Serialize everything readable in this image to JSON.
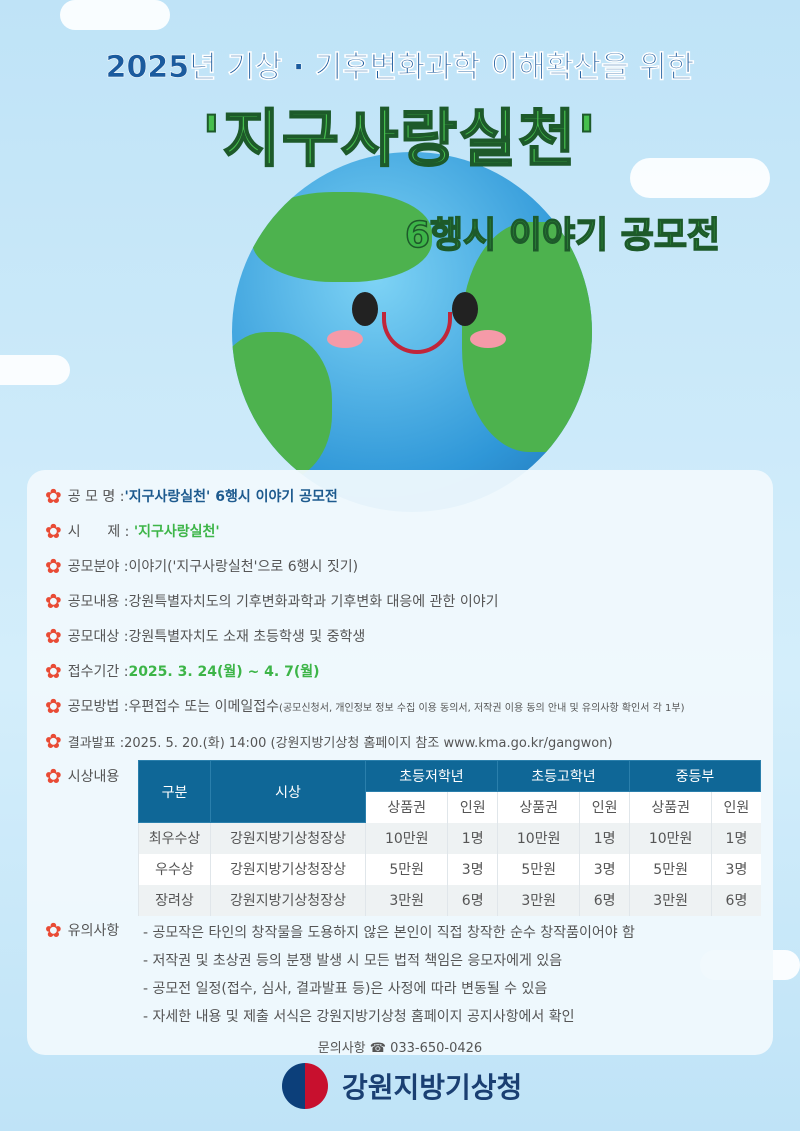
{
  "title": {
    "line1": "2025년 기상 · 기후변화과학 이해확산을 위한",
    "line2": "'지구사랑실천'",
    "line3": "6행시 이야기 공모전"
  },
  "items": [
    {
      "label": "공 모 명 : ",
      "value": "'지구사랑실천' 6행시 이야기 공모전"
    },
    {
      "label": "시      제 : ",
      "value": "'지구사랑실천'"
    },
    {
      "label": "공모분야 : ",
      "value": "이야기('지구사랑실천'으로 6행시 짓기)"
    },
    {
      "label": "공모내용 : ",
      "value": "강원특별자치도의 기후변화과학과 기후변화 대응에 관한 이야기"
    },
    {
      "label": "공모대상 : ",
      "value": "강원특별자치도 소재 초등학생 및 중학생"
    },
    {
      "label": "접수기간 : ",
      "value": "2025. 3. 24(월) ~ 4. 7(월)"
    },
    {
      "label": "공모방법 : ",
      "value": "우편접수 또는 이메일접수",
      "note": "(공모신청서, 개인정보 정보 수집 이용 동의서, 저작권 이용 동의 안내 및 유의사항 확인서 각 1부)"
    },
    {
      "label": "결과발표 : ",
      "value": "2025. 5. 20.(화) 14:00 (강원지방기상청 홈페이지 참조 www.kma.go.kr/gangwon)"
    },
    {
      "label": "시상내용",
      "value": ""
    }
  ],
  "table": {
    "h1": [
      "구분",
      "시상",
      "초등저학년",
      "초등고학년",
      "중등부"
    ],
    "h2": [
      "상품권",
      "인원",
      "상품권",
      "인원",
      "상품권",
      "인원"
    ],
    "rows": [
      [
        "최우수상",
        "강원지방기상청장상",
        "10만원",
        "1명",
        "10만원",
        "1명",
        "10만원",
        "1명"
      ],
      [
        "우수상",
        "강원지방기상청장상",
        "5만원",
        "3명",
        "5만원",
        "3명",
        "5만원",
        "3명"
      ],
      [
        "장려상",
        "강원지방기상청장상",
        "3만원",
        "6명",
        "3만원",
        "6명",
        "3만원",
        "6명"
      ]
    ]
  },
  "notes": {
    "label": "유의사항",
    "lines": [
      "- 공모작은 타인의 창작물을 도용하지 않은 본인이 직접 창작한 순수 창작품이어야 함",
      "- 저작권 및 초상권 등의 분쟁 발생 시 모든 법적 책임은 응모자에게 있음",
      "- 공모전 일정(접수, 심사, 결과발표 등)은 사정에 따라 변동될 수 있음",
      "- 자세한 내용 및 제출 서식은 강원지방기상청 홈페이지 공지사항에서 확인"
    ]
  },
  "contact": {
    "label": "문의사항 ☎ ",
    "phone": "033-650-0426"
  },
  "org": "강원지방기상청",
  "colors": {
    "accent": "#0f6797",
    "green": "#3db548",
    "flower": "#e94b35"
  }
}
